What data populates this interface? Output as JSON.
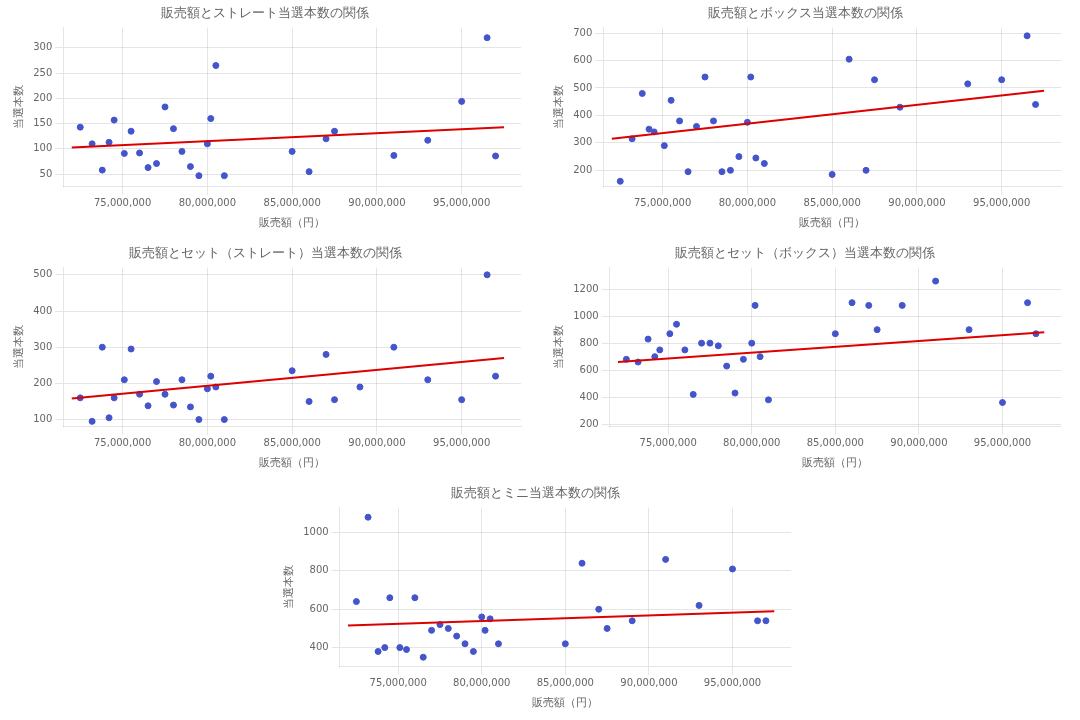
{
  "chart_data": [
    {
      "type": "scatter",
      "title": "販売額とストレート当選本数の関係",
      "x_label": "販売額（円）",
      "y_label": "当選本数",
      "series": [
        {
          "type": "scatter",
          "color": "#4455cc",
          "x": [
            72500000,
            73200000,
            73800000,
            74200000,
            74500000,
            75100000,
            75500000,
            76000000,
            76500000,
            77000000,
            77500000,
            78000000,
            78500000,
            79000000,
            79500000,
            80000000,
            80200000,
            80500000,
            81000000,
            85000000,
            86000000,
            87000000,
            87500000,
            91000000,
            93000000,
            95000000,
            96500000,
            97000000
          ],
          "values": [
            143,
            110,
            58,
            113,
            157,
            91,
            135,
            92,
            63,
            71,
            183,
            140,
            95,
            65,
            47,
            110,
            160,
            265,
            47,
            95,
            55,
            120,
            135,
            87,
            117,
            194,
            320,
            86
          ]
        },
        {
          "type": "line",
          "color": "#dd0000",
          "x": [
            72000000,
            97500000
          ],
          "values": [
            103,
            143
          ]
        }
      ],
      "xlim": [
        71500000,
        98500000
      ],
      "xticks": [
        {
          "value": 75000000,
          "label": "75,000,000"
        },
        {
          "value": 80000000,
          "label": "80,000,000"
        },
        {
          "value": 85000000,
          "label": "85,000,000"
        },
        {
          "value": 90000000,
          "label": "90,000,000"
        },
        {
          "value": 95000000,
          "label": "95,000,000"
        }
      ],
      "ylim": [
        25,
        340
      ],
      "yticks": [
        50,
        100,
        150,
        200,
        250,
        300
      ],
      "grid": true
    },
    {
      "type": "scatter",
      "title": "販売額とボックス当選本数の関係",
      "x_label": "販売額（円）",
      "y_label": "当選本数",
      "series": [
        {
          "type": "scatter",
          "color": "#4455cc",
          "x": [
            72500000,
            73200000,
            73800000,
            74200000,
            74500000,
            75100000,
            75500000,
            76000000,
            76500000,
            77000000,
            77500000,
            78000000,
            78500000,
            79000000,
            79500000,
            80000000,
            80200000,
            80500000,
            81000000,
            85000000,
            86000000,
            87000000,
            87500000,
            89000000,
            93000000,
            95000000,
            96500000,
            97000000
          ],
          "values": [
            160,
            315,
            480,
            350,
            340,
            290,
            455,
            380,
            195,
            360,
            540,
            380,
            195,
            200,
            250,
            375,
            540,
            245,
            225,
            185,
            605,
            200,
            530,
            430,
            515,
            530,
            690,
            440
          ]
        },
        {
          "type": "line",
          "color": "#dd0000",
          "x": [
            72000000,
            97500000
          ],
          "values": [
            315,
            490
          ]
        }
      ],
      "xlim": [
        71500000,
        98500000
      ],
      "xticks": [
        {
          "value": 75000000,
          "label": "75,000,000"
        },
        {
          "value": 80000000,
          "label": "80,000,000"
        },
        {
          "value": 85000000,
          "label": "85,000,000"
        },
        {
          "value": 90000000,
          "label": "90,000,000"
        },
        {
          "value": 95000000,
          "label": "95,000,000"
        }
      ],
      "ylim": [
        140,
        720
      ],
      "yticks": [
        200,
        300,
        400,
        500,
        600,
        700
      ],
      "grid": true
    },
    {
      "type": "scatter",
      "title": "販売額とセット（ストレート）当選本数の関係",
      "x_label": "販売額（円）",
      "y_label": "当選本数",
      "series": [
        {
          "type": "scatter",
          "color": "#4455cc",
          "x": [
            72500000,
            73200000,
            73800000,
            74200000,
            74500000,
            75100000,
            75500000,
            76000000,
            76500000,
            77000000,
            77500000,
            78000000,
            78500000,
            79000000,
            79500000,
            80000000,
            80200000,
            80500000,
            81000000,
            85000000,
            86000000,
            87000000,
            87500000,
            89000000,
            91000000,
            93000000,
            95000000,
            96500000,
            97000000
          ],
          "values": [
            160,
            95,
            300,
            105,
            160,
            210,
            295,
            170,
            138,
            205,
            170,
            140,
            210,
            135,
            100,
            185,
            220,
            190,
            100,
            235,
            150,
            280,
            155,
            190,
            300,
            210,
            155,
            500,
            220
          ]
        },
        {
          "type": "line",
          "color": "#dd0000",
          "x": [
            72000000,
            97500000
          ],
          "values": [
            158,
            270
          ]
        }
      ],
      "xlim": [
        71500000,
        98500000
      ],
      "xticks": [
        {
          "value": 75000000,
          "label": "75,000,000"
        },
        {
          "value": 80000000,
          "label": "80,000,000"
        },
        {
          "value": 85000000,
          "label": "85,000,000"
        },
        {
          "value": 90000000,
          "label": "90,000,000"
        },
        {
          "value": 95000000,
          "label": "95,000,000"
        }
      ],
      "ylim": [
        80,
        520
      ],
      "yticks": [
        100,
        200,
        300,
        400,
        500
      ],
      "grid": true
    },
    {
      "type": "scatter",
      "title": "販売額とセット（ボックス）当選本数の関係",
      "x_label": "販売額（円）",
      "y_label": "当選本数",
      "series": [
        {
          "type": "scatter",
          "color": "#4455cc",
          "x": [
            72500000,
            73200000,
            73800000,
            74200000,
            74500000,
            75100000,
            75500000,
            76000000,
            76500000,
            77000000,
            77500000,
            78000000,
            78500000,
            79000000,
            79500000,
            80000000,
            80200000,
            80500000,
            81000000,
            85000000,
            86000000,
            87000000,
            87500000,
            89000000,
            91000000,
            93000000,
            95000000,
            96500000,
            97000000
          ],
          "values": [
            680,
            660,
            830,
            700,
            750,
            870,
            940,
            750,
            420,
            800,
            800,
            780,
            630,
            430,
            680,
            800,
            1080,
            700,
            380,
            870,
            1100,
            1080,
            900,
            1080,
            1260,
            900,
            360,
            1100,
            870
          ]
        },
        {
          "type": "line",
          "color": "#dd0000",
          "x": [
            72000000,
            97500000
          ],
          "values": [
            660,
            880
          ]
        }
      ],
      "xlim": [
        71500000,
        98500000
      ],
      "xticks": [
        {
          "value": 75000000,
          "label": "75,000,000"
        },
        {
          "value": 80000000,
          "label": "80,000,000"
        },
        {
          "value": 85000000,
          "label": "85,000,000"
        },
        {
          "value": 90000000,
          "label": "90,000,000"
        },
        {
          "value": 95000000,
          "label": "95,000,000"
        }
      ],
      "ylim": [
        180,
        1360
      ],
      "yticks": [
        200,
        400,
        600,
        800,
        1000,
        1200
      ],
      "grid": true
    },
    {
      "type": "scatter",
      "title": "販売額とミニ当選本数の関係",
      "x_label": "販売額（円）",
      "y_label": "当選本数",
      "series": [
        {
          "type": "scatter",
          "color": "#4455cc",
          "x": [
            72500000,
            73200000,
            73800000,
            74200000,
            74500000,
            75100000,
            75500000,
            76000000,
            76500000,
            77000000,
            77500000,
            78000000,
            78500000,
            79000000,
            79500000,
            80000000,
            80200000,
            80500000,
            81000000,
            85000000,
            86000000,
            87000000,
            87500000,
            89000000,
            91000000,
            93000000,
            95000000,
            96500000,
            97000000
          ],
          "values": [
            640,
            1080,
            380,
            400,
            660,
            400,
            390,
            660,
            350,
            490,
            520,
            500,
            460,
            420,
            380,
            560,
            490,
            550,
            420,
            420,
            840,
            600,
            500,
            540,
            860,
            620,
            810,
            540,
            540
          ]
        },
        {
          "type": "line",
          "color": "#dd0000",
          "x": [
            72000000,
            97500000
          ],
          "values": [
            515,
            590
          ]
        }
      ],
      "xlim": [
        71500000,
        98500000
      ],
      "xticks": [
        {
          "value": 75000000,
          "label": "75,000,000"
        },
        {
          "value": 80000000,
          "label": "80,000,000"
        },
        {
          "value": 85000000,
          "label": "85,000,000"
        },
        {
          "value": 90000000,
          "label": "90,000,000"
        },
        {
          "value": 95000000,
          "label": "95,000,000"
        }
      ],
      "ylim": [
        300,
        1130
      ],
      "yticks": [
        400,
        600,
        800,
        1000
      ],
      "grid": true
    }
  ]
}
